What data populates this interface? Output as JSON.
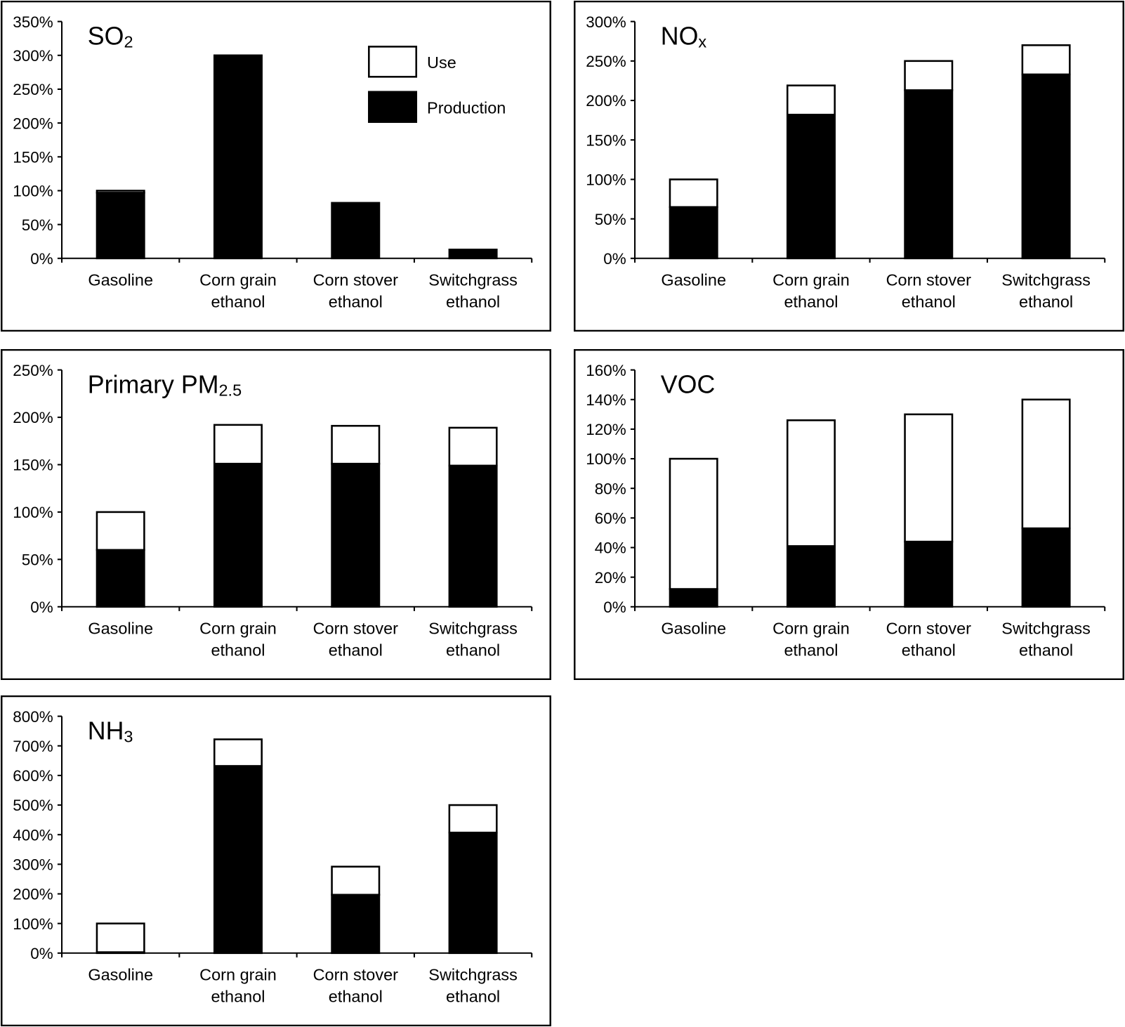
{
  "chart_data": [
    {
      "type": "bar",
      "stacked": true,
      "title": "SO2",
      "title_main": "SO",
      "title_sub": "2",
      "categories": [
        [
          "Gasoline"
        ],
        [
          "Corn grain",
          "ethanol"
        ],
        [
          "Corn stover",
          "ethanol"
        ],
        [
          "Switchgrass",
          "ethanol"
        ]
      ],
      "ylim": [
        0,
        350
      ],
      "yticks": [
        0,
        50,
        100,
        150,
        200,
        250,
        300,
        350
      ],
      "tick_suffix": "%",
      "series": [
        {
          "name": "Production",
          "color": "#000000",
          "values": [
            97,
            300,
            82,
            13
          ]
        },
        {
          "name": "Use",
          "color": "#ffffff",
          "values": [
            3,
            0,
            0,
            0
          ]
        }
      ],
      "legend": {
        "position": "top-right",
        "items": [
          {
            "label": "Use",
            "color": "#ffffff"
          },
          {
            "label": "Production",
            "color": "#000000"
          }
        ]
      }
    },
    {
      "type": "bar",
      "stacked": true,
      "title": "NOx",
      "title_main": "NO",
      "title_sub": "x",
      "categories": [
        [
          "Gasoline"
        ],
        [
          "Corn grain",
          "ethanol"
        ],
        [
          "Corn stover",
          "ethanol"
        ],
        [
          "Switchgrass",
          "ethanol"
        ]
      ],
      "ylim": [
        0,
        300
      ],
      "yticks": [
        0,
        50,
        100,
        150,
        200,
        250,
        300
      ],
      "tick_suffix": "%",
      "series": [
        {
          "name": "Production",
          "color": "#000000",
          "values": [
            65,
            182,
            213,
            233
          ]
        },
        {
          "name": "Use",
          "color": "#ffffff",
          "values": [
            35,
            37,
            37,
            37
          ]
        }
      ]
    },
    {
      "type": "bar",
      "stacked": true,
      "title": "Primary PM2.5",
      "title_main": "Primary PM",
      "title_sub": "2.5",
      "categories": [
        [
          "Gasoline"
        ],
        [
          "Corn grain",
          "ethanol"
        ],
        [
          "Corn stover",
          "ethanol"
        ],
        [
          "Switchgrass",
          "ethanol"
        ]
      ],
      "ylim": [
        0,
        250
      ],
      "yticks": [
        0,
        50,
        100,
        150,
        200,
        250
      ],
      "tick_suffix": "%",
      "series": [
        {
          "name": "Production",
          "color": "#000000",
          "values": [
            60,
            151,
            151,
            149
          ]
        },
        {
          "name": "Use",
          "color": "#ffffff",
          "values": [
            40,
            41,
            40,
            40
          ]
        }
      ]
    },
    {
      "type": "bar",
      "stacked": true,
      "title": "VOC",
      "title_main": "VOC",
      "title_sub": "",
      "categories": [
        [
          "Gasoline"
        ],
        [
          "Corn grain",
          "ethanol"
        ],
        [
          "Corn stover",
          "ethanol"
        ],
        [
          "Switchgrass",
          "ethanol"
        ]
      ],
      "ylim": [
        0,
        160
      ],
      "yticks": [
        0,
        20,
        40,
        60,
        80,
        100,
        120,
        140,
        160
      ],
      "tick_suffix": "%",
      "series": [
        {
          "name": "Production",
          "color": "#000000",
          "values": [
            12,
            41,
            44,
            53
          ]
        },
        {
          "name": "Use",
          "color": "#ffffff",
          "values": [
            88,
            85,
            86,
            87
          ]
        }
      ]
    },
    {
      "type": "bar",
      "stacked": true,
      "title": "NH3",
      "title_main": "NH",
      "title_sub": "3",
      "categories": [
        [
          "Gasoline"
        ],
        [
          "Corn grain",
          "ethanol"
        ],
        [
          "Corn stover",
          "ethanol"
        ],
        [
          "Switchgrass",
          "ethanol"
        ]
      ],
      "ylim": [
        0,
        800
      ],
      "yticks": [
        0,
        100,
        200,
        300,
        400,
        500,
        600,
        700,
        800
      ],
      "tick_suffix": "%",
      "series": [
        {
          "name": "Production",
          "color": "#000000",
          "values": [
            3,
            632,
            197,
            407
          ]
        },
        {
          "name": "Use",
          "color": "#ffffff",
          "values": [
            97,
            90,
            95,
            93
          ]
        }
      ]
    }
  ]
}
